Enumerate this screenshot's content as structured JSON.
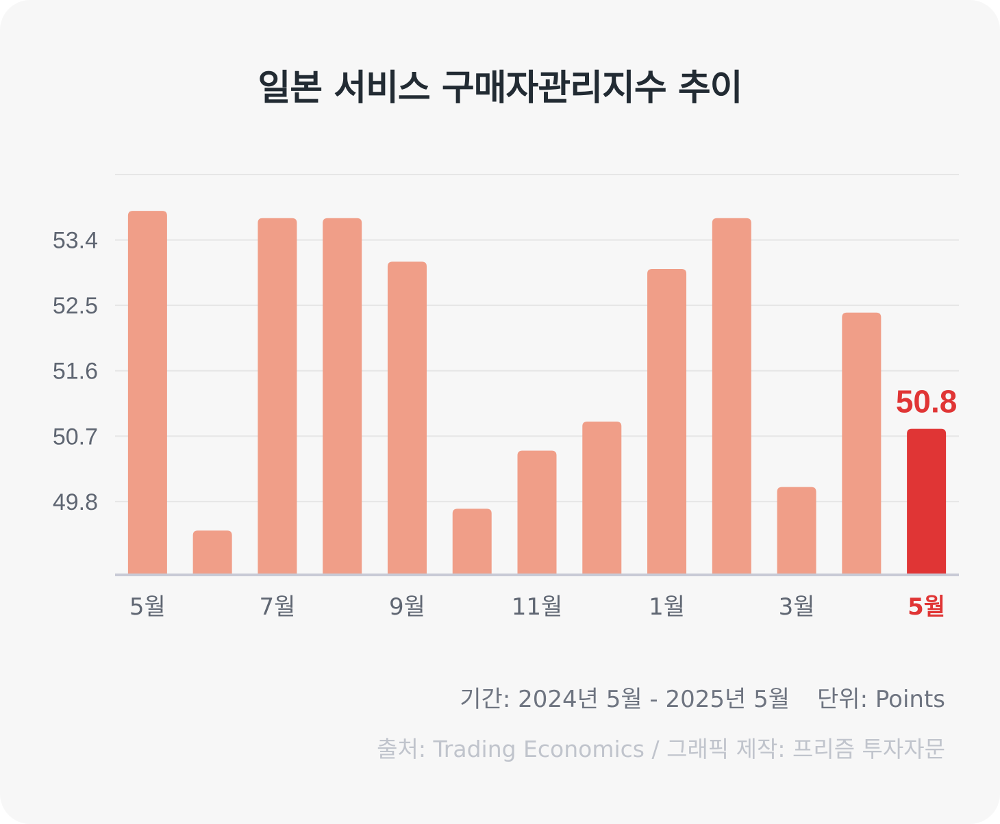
{
  "title": "일본 서비스 구매자관리지수 추이",
  "chart_data": {
    "type": "bar",
    "categories": [
      "2024-05",
      "2024-06",
      "2024-07",
      "2024-08",
      "2024-09",
      "2024-10",
      "2024-11",
      "2024-12",
      "2025-01",
      "2025-02",
      "2025-03",
      "2025-04",
      "2025-05"
    ],
    "values": [
      53.8,
      49.4,
      53.7,
      53.7,
      53.1,
      49.7,
      50.5,
      50.9,
      53.0,
      53.7,
      50.0,
      52.4,
      50.8
    ],
    "x_tick_labels": [
      "5월",
      "",
      "7월",
      "",
      "9월",
      "",
      "11월",
      "",
      "1월",
      "",
      "3월",
      "",
      "5월"
    ],
    "y_ticks": [
      "49.8",
      "50.7",
      "51.6",
      "52.5",
      "53.4"
    ],
    "ylim": [
      48.8,
      54.3
    ],
    "highlight_index": 12,
    "highlight_label": "50.8",
    "grid": true,
    "legend": "none",
    "colors": {
      "bar": "#f09e88",
      "highlight": "#e03535",
      "grid": "#e6e6e6",
      "axis": "#c8cad6"
    }
  },
  "footer": {
    "period": "기간: 2024년 5월 - 2025년 5월",
    "unit": "단위: Points",
    "source": "출처: Trading Economics / 그래픽 제작: 프리즘 투자자문"
  }
}
